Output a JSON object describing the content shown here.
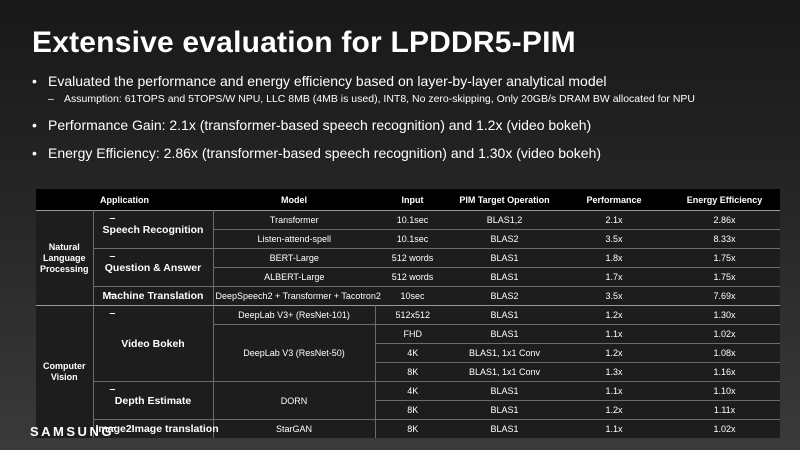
{
  "title": "Extensive evaluation for LPDDR5-PIM",
  "bullets": {
    "b1": "Evaluated the performance and energy efficiency based on layer-by-layer analytical model",
    "b1_sub": "Assumption:  61TOPS and 5TOPS/W NPU, LLC 8MB (4MB is used), INT8, No zero-skipping, Only 20GB/s DRAM BW allocated for NPU",
    "b2": "Performance Gain: 2.1x (transformer-based speech recognition) and 1.2x (video bokeh)",
    "b3": "Energy Efficiency: 2.86x (transformer-based speech recognition) and 1.30x (video bokeh)"
  },
  "table": {
    "headers": {
      "application": "Application",
      "model": "Model",
      "input": "Input",
      "pim": "PIM Target Operation",
      "performance": "Performance",
      "energy": "Energy Efficiency"
    },
    "groups": {
      "nlp": "Natural Language Processing",
      "cv": "Computer Vision"
    },
    "subapps": {
      "speech": "Speech Recognition",
      "qa": "Question & Answer",
      "mt": "Machine Translation",
      "bokeh": "Video Bokeh",
      "depth": "Depth Estimate",
      "i2i": "Image2Image translation"
    },
    "rows": [
      {
        "model": "Transformer",
        "input": "10.1sec",
        "op": "BLAS1,2",
        "perf": "2.1x",
        "ee": "2.86x"
      },
      {
        "model": "Listen-attend-spell",
        "input": "10.1sec",
        "op": "BLAS2",
        "perf": "3.5x",
        "ee": "8.33x"
      },
      {
        "model": "BERT-Large",
        "input": "512 words",
        "op": "BLAS1",
        "perf": "1.8x",
        "ee": "1.75x"
      },
      {
        "model": "ALBERT-Large",
        "input": "512 words",
        "op": "BLAS1",
        "perf": "1.7x",
        "ee": "1.75x"
      },
      {
        "model": "DeepSpeech2 + Transformer + Tacotron2",
        "input": "10sec",
        "op": "BLAS2",
        "perf": "3.5x",
        "ee": "7.69x"
      },
      {
        "model": "DeepLab V3+ (ResNet-101)",
        "input": "512x512",
        "op": "BLAS1",
        "perf": "1.2x",
        "ee": "1.30x"
      },
      {
        "model": "DeepLab V3 (ResNet-50)",
        "input": "FHD",
        "op": "BLAS1",
        "perf": "1.1x",
        "ee": "1.02x"
      },
      {
        "model": "",
        "input": "4K",
        "op": "BLAS1, 1x1 Conv",
        "perf": "1.2x",
        "ee": "1.08x"
      },
      {
        "model": "",
        "input": "8K",
        "op": "BLAS1, 1x1 Conv",
        "perf": "1.3x",
        "ee": "1.16x"
      },
      {
        "model": "DORN",
        "input": "4K",
        "op": "BLAS1",
        "perf": "1.1x",
        "ee": "1.10x"
      },
      {
        "model": "",
        "input": "8K",
        "op": "BLAS1",
        "perf": "1.2x",
        "ee": "1.11x"
      },
      {
        "model": "StarGAN",
        "input": "8K",
        "op": "BLAS1",
        "perf": "1.1x",
        "ee": "1.02x"
      }
    ]
  },
  "footer": {
    "logo": "SAMSUNG",
    "page": ""
  }
}
